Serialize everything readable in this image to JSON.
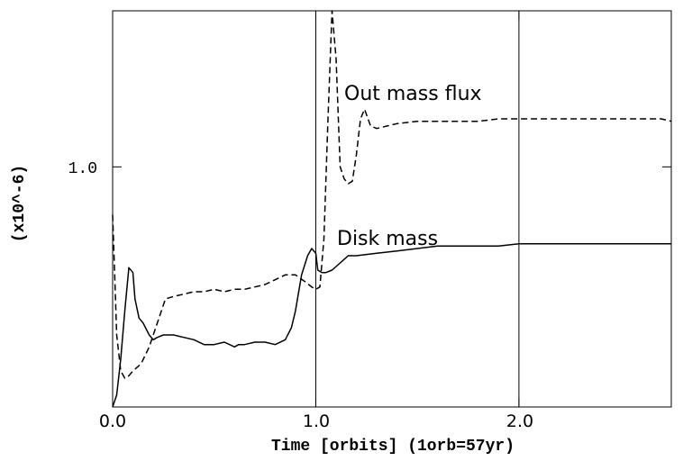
{
  "chart_data": {
    "type": "line",
    "xlabel": "Time [orbits] (1orb=57yr)",
    "ylabel": "(x10^-6)",
    "xlim": [
      0,
      2.75
    ],
    "ylim": [
      0,
      1.65
    ],
    "xticks": [
      0.0,
      1.0,
      2.0
    ],
    "xtick_labels": [
      "0.0",
      "1.0",
      "2.0"
    ],
    "yticks": [
      1.0
    ],
    "ytick_labels": [
      "1.0"
    ],
    "vlines": [
      1.0,
      2.0
    ],
    "grid": false,
    "legend": "none",
    "annotations": [
      {
        "text": "Out mass flux",
        "x": 1.15,
        "y": 1.29
      },
      {
        "text": "Disk mass",
        "x": 1.12,
        "y": 0.68
      }
    ],
    "series": [
      {
        "style": "dashed",
        "x": [
          0.0,
          0.01,
          0.02,
          0.04,
          0.06,
          0.08,
          0.1,
          0.14,
          0.18,
          0.22,
          0.26,
          0.3,
          0.35,
          0.4,
          0.45,
          0.5,
          0.55,
          0.6,
          0.65,
          0.7,
          0.75,
          0.8,
          0.85,
          0.9,
          0.95,
          0.98,
          1.0,
          1.02,
          1.04,
          1.06,
          1.08,
          1.1,
          1.12,
          1.14,
          1.16,
          1.18,
          1.2,
          1.22,
          1.24,
          1.27,
          1.3,
          1.35,
          1.4,
          1.5,
          1.6,
          1.7,
          1.8,
          1.9,
          2.0,
          2.1,
          2.2,
          2.3,
          2.4,
          2.5,
          2.6,
          2.7,
          2.75
        ],
        "y": [
          0.8,
          0.55,
          0.3,
          0.15,
          0.12,
          0.13,
          0.15,
          0.18,
          0.25,
          0.35,
          0.45,
          0.46,
          0.47,
          0.48,
          0.48,
          0.49,
          0.48,
          0.49,
          0.49,
          0.5,
          0.51,
          0.53,
          0.55,
          0.55,
          0.52,
          0.5,
          0.49,
          0.5,
          0.7,
          1.2,
          1.65,
          1.45,
          1.0,
          0.95,
          0.93,
          0.94,
          1.05,
          1.2,
          1.24,
          1.17,
          1.16,
          1.17,
          1.18,
          1.19,
          1.19,
          1.19,
          1.19,
          1.2,
          1.2,
          1.2,
          1.2,
          1.2,
          1.2,
          1.2,
          1.2,
          1.2,
          1.19
        ]
      },
      {
        "style": "solid",
        "x": [
          0.0,
          0.02,
          0.04,
          0.06,
          0.08,
          0.1,
          0.11,
          0.13,
          0.15,
          0.18,
          0.2,
          0.22,
          0.25,
          0.3,
          0.35,
          0.4,
          0.45,
          0.5,
          0.55,
          0.6,
          0.62,
          0.65,
          0.7,
          0.75,
          0.8,
          0.85,
          0.88,
          0.9,
          0.93,
          0.96,
          0.98,
          1.0,
          1.01,
          1.03,
          1.05,
          1.08,
          1.12,
          1.16,
          1.2,
          1.3,
          1.4,
          1.5,
          1.6,
          1.7,
          1.8,
          1.9,
          2.0,
          2.2,
          2.4,
          2.6,
          2.75
        ],
        "y": [
          0.0,
          0.05,
          0.2,
          0.4,
          0.58,
          0.56,
          0.45,
          0.37,
          0.35,
          0.3,
          0.28,
          0.29,
          0.3,
          0.3,
          0.29,
          0.28,
          0.26,
          0.26,
          0.27,
          0.25,
          0.26,
          0.26,
          0.27,
          0.27,
          0.26,
          0.28,
          0.33,
          0.4,
          0.55,
          0.63,
          0.66,
          0.64,
          0.57,
          0.56,
          0.56,
          0.57,
          0.6,
          0.63,
          0.63,
          0.64,
          0.65,
          0.66,
          0.67,
          0.67,
          0.67,
          0.67,
          0.68,
          0.68,
          0.68,
          0.68,
          0.68
        ]
      }
    ]
  }
}
